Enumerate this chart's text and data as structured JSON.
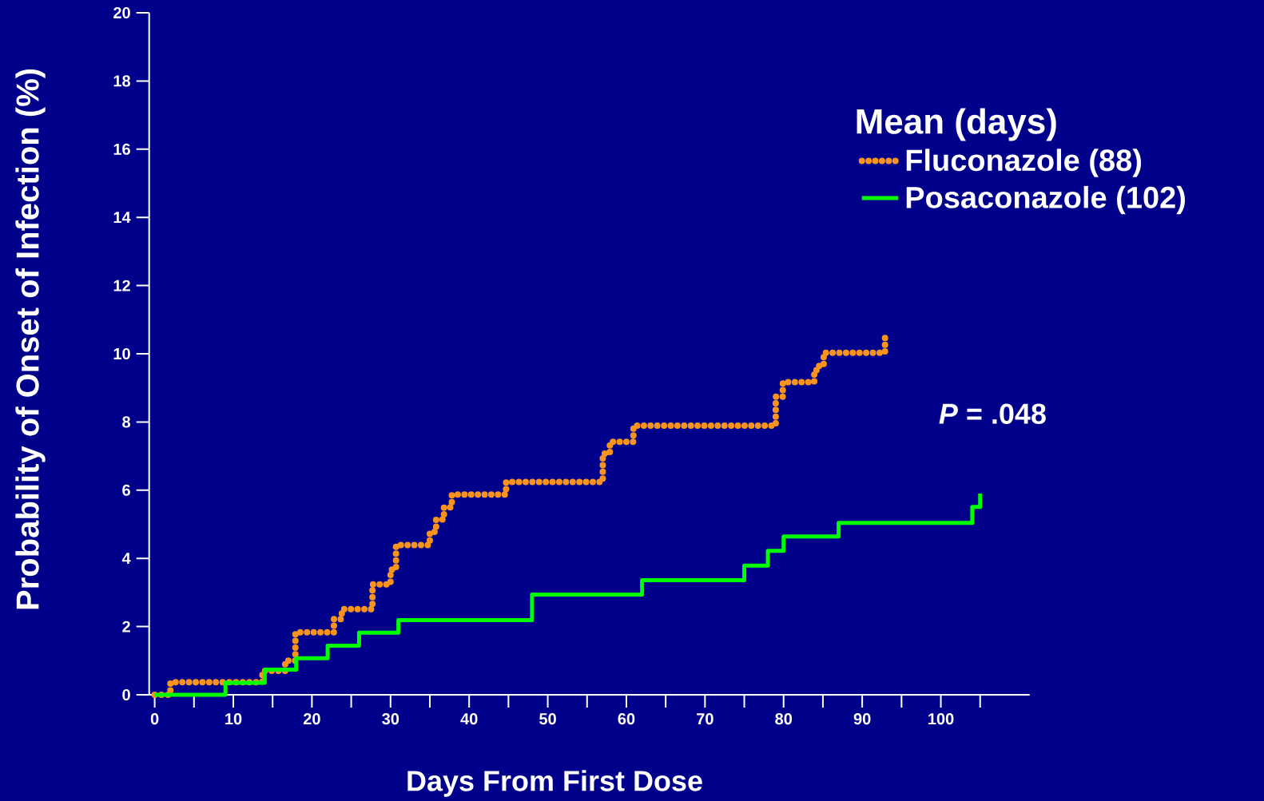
{
  "chart_data": {
    "type": "step",
    "xlabel": "Days From First Dose",
    "ylabel": "Probability of Onset of Infection (%)",
    "legend_title": "Mean (days)",
    "legend": "right",
    "annotations": [
      "*P* = .048"
    ],
    "xlim": [
      -0.7,
      111.3
    ],
    "xticks": [
      0,
      {
        "value": 5,
        "label": null
      },
      10,
      {
        "value": 15,
        "label": null
      },
      20,
      {
        "value": 25,
        "label": null
      },
      30,
      {
        "value": 35,
        "label": null
      },
      40,
      {
        "value": 45,
        "label": null
      },
      50,
      {
        "value": 55,
        "label": null
      },
      60,
      {
        "value": 65,
        "label": null
      },
      70,
      {
        "value": 75,
        "label": null
      },
      80,
      {
        "value": 85,
        "label": null
      },
      90,
      {
        "value": 95,
        "label": null
      },
      100,
      {
        "value": 105,
        "label": null
      }
    ],
    "ylim": [
      0,
      20
    ],
    "yticks": [
      0,
      2,
      4,
      6,
      8,
      10,
      12,
      14,
      16,
      18,
      20
    ],
    "series": [
      {
        "name": "Fluconazole (88)",
        "color": "#f7931e",
        "line_style": "dotted",
        "x": [
          0,
          2,
          13.7,
          16.6,
          17.9,
          22.8,
          23.8,
          27.7,
          30,
          30.7,
          35,
          35.8,
          36.8,
          37.8,
          44.7,
          57,
          57.9,
          60.9,
          79,
          79.9,
          83.9,
          84.4,
          85.1,
          92.9
        ],
        "values": [
          0,
          0.37,
          0.7,
          1.0,
          1.83,
          2.22,
          2.51,
          3.24,
          3.67,
          4.39,
          4.78,
          5.14,
          5.5,
          5.87,
          6.24,
          7.07,
          7.42,
          7.89,
          8.74,
          9.17,
          9.52,
          9.64,
          10.03,
          10.5
        ]
      },
      {
        "name": "Posaconazole (102)",
        "color": "#00ff00",
        "line_style": "solid",
        "x": [
          0,
          9,
          14,
          18,
          22,
          26,
          31,
          48,
          62,
          75,
          78,
          80,
          87,
          104,
          105
        ],
        "values": [
          0,
          0.35,
          0.74,
          1.07,
          1.44,
          1.82,
          2.19,
          2.94,
          3.36,
          3.79,
          4.22,
          4.64,
          5.04,
          5.51,
          5.9
        ]
      }
    ]
  }
}
